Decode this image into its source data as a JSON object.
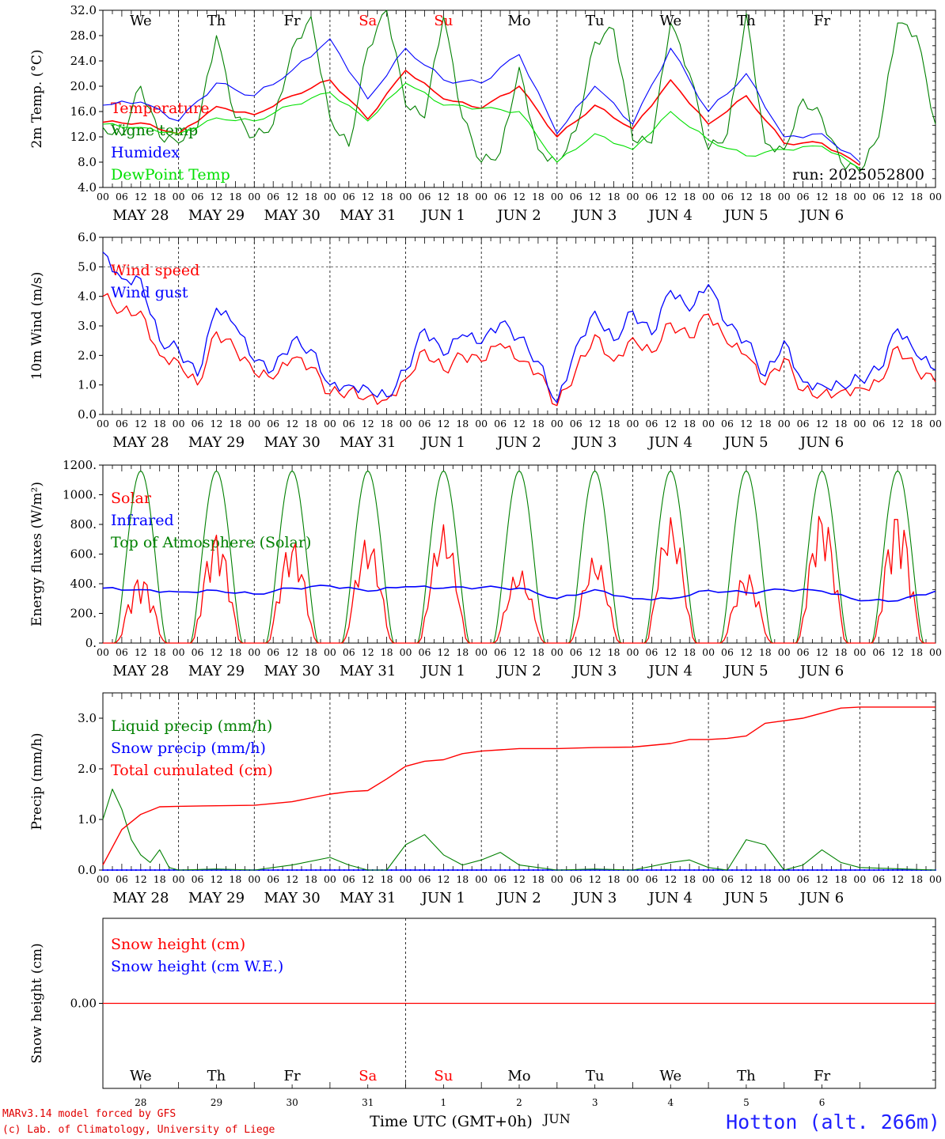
{
  "run_label": "run: 2025052800",
  "x_axis": {
    "hour_labels": [
      "00",
      "06",
      "12",
      "18"
    ],
    "date_labels": [
      "MAY 28",
      "MAY 29",
      "MAY 30",
      "MAY 31",
      "JUN  1",
      "JUN  2",
      "JUN  3",
      "JUN  4",
      "JUN  5",
      "JUN  6"
    ],
    "final_hour": "00",
    "title": "Time UTC (GMT+0h)"
  },
  "weekdays": [
    {
      "label": "We",
      "color": "#000000"
    },
    {
      "label": "Th",
      "color": "#000000"
    },
    {
      "label": "Fr",
      "color": "#000000"
    },
    {
      "label": "Sa",
      "color": "#ff0000"
    },
    {
      "label": "Su",
      "color": "#ff0000"
    },
    {
      "label": "Mo",
      "color": "#000000"
    },
    {
      "label": "Tu",
      "color": "#000000"
    },
    {
      "label": "We",
      "color": "#000000"
    },
    {
      "label": "Th",
      "color": "#000000"
    },
    {
      "label": "Fr",
      "color": "#000000"
    }
  ],
  "day_numbers": [
    "28",
    "29",
    "30",
    "31",
    "1",
    "2",
    "3",
    "4",
    "5",
    "6"
  ],
  "month_bottom": "JUN",
  "footer": {
    "line1": "MARv3.14 model forced by GFS",
    "line2": "(c) Lab. of Climatology, University of Liege",
    "station": "Hotton (alt. 266m)"
  },
  "colors": {
    "red": "#ff0000",
    "blue": "#0000ff",
    "green": "#008000",
    "light_green": "#00e000"
  },
  "chart_data": [
    {
      "id": "temp",
      "type": "line",
      "ylabel": "2m Temp. (°C)",
      "ylim": [
        4,
        32
      ],
      "yticks": [
        "4.0",
        "8.0",
        "12.0",
        "16.0",
        "20.0",
        "24.0",
        "28.0",
        "32.0"
      ],
      "ytick_values": [
        4,
        8,
        12,
        16,
        20,
        24,
        28,
        32
      ],
      "series": [
        {
          "name": "Temperature",
          "color": "#ff0000",
          "x": [
            0,
            12,
            24,
            36,
            48,
            60,
            72,
            84,
            96,
            108,
            120,
            132,
            144,
            156,
            168,
            180,
            192,
            204,
            216,
            228,
            240
          ],
          "values": [
            14.3,
            14.2,
            12.5,
            16.8,
            15.5,
            18.5,
            21.0,
            14.8,
            22.5,
            18.0,
            16.5,
            20.0,
            12.0,
            17.0,
            13.3,
            21.0,
            14.0,
            18.5,
            11.0,
            11.0,
            7.5
          ]
        },
        {
          "name": "Vigne temp",
          "color": "#008000",
          "x": [
            0,
            6,
            12,
            18,
            24,
            30,
            36,
            42,
            48,
            54,
            60,
            66,
            72,
            78,
            84,
            90,
            96,
            102,
            108,
            114,
            120,
            126,
            132,
            138,
            144,
            150,
            156,
            162,
            168,
            174,
            180,
            186,
            192,
            198,
            204,
            210,
            216,
            222,
            228,
            234,
            240,
            246,
            252,
            258,
            264
          ],
          "values": [
            13.5,
            12.2,
            20.0,
            12.0,
            11.0,
            13.5,
            28.0,
            15.0,
            12.0,
            14.0,
            26.0,
            31.0,
            15.0,
            10.5,
            26.0,
            32.0,
            17.0,
            15.0,
            31.0,
            15.0,
            8.0,
            9.5,
            23.0,
            10.0,
            8.0,
            13.0,
            27.0,
            29.0,
            11.5,
            11.0,
            30.0,
            22.0,
            10.0,
            12.5,
            31.5,
            11.0,
            10.0,
            18.0,
            15.0,
            8.0,
            6.5,
            12.0,
            30.0,
            28.0,
            14.0
          ]
        },
        {
          "name": "Humidex",
          "color": "#0000ff",
          "x": [
            0,
            12,
            24,
            36,
            48,
            60,
            72,
            84,
            96,
            108,
            120,
            132,
            144,
            156,
            168,
            180,
            192,
            204,
            216,
            228,
            240
          ],
          "values": [
            17.0,
            17.5,
            14.5,
            20.5,
            18.5,
            22.5,
            27.5,
            18.0,
            26.0,
            21.0,
            20.5,
            25.0,
            12.5,
            20.0,
            14.0,
            26.0,
            16.0,
            22.0,
            12.0,
            12.5,
            8.0
          ]
        },
        {
          "name": "DewPoint Temp",
          "color": "#00e000",
          "x": [
            0,
            12,
            24,
            36,
            48,
            60,
            72,
            84,
            96,
            108,
            120,
            132,
            144,
            156,
            168,
            180,
            192,
            204,
            216,
            228,
            240
          ],
          "values": [
            14.0,
            13.5,
            12.5,
            15.0,
            14.5,
            17.0,
            19.0,
            14.5,
            20.5,
            17.0,
            16.5,
            16.0,
            8.0,
            12.5,
            10.0,
            16.0,
            11.5,
            9.0,
            10.0,
            10.5,
            7.0
          ]
        }
      ]
    },
    {
      "id": "wind",
      "type": "line",
      "ylabel": "10m Wind (m/s)",
      "ylim": [
        0,
        6
      ],
      "yticks": [
        "0.0",
        "1.0",
        "2.0",
        "3.0",
        "4.0",
        "5.0",
        "6.0"
      ],
      "ytick_values": [
        0,
        1,
        2,
        3,
        4,
        5,
        6
      ],
      "series": [
        {
          "name": "Wind speed",
          "color": "#ff0000",
          "x": [
            0,
            6,
            12,
            18,
            24,
            30,
            36,
            42,
            48,
            54,
            60,
            66,
            72,
            78,
            84,
            90,
            96,
            102,
            108,
            114,
            120,
            126,
            132,
            138,
            144,
            150,
            156,
            162,
            168,
            174,
            180,
            186,
            192,
            198,
            204,
            210,
            216,
            222,
            228,
            234,
            240,
            246,
            252,
            258,
            264
          ],
          "values": [
            4.0,
            3.5,
            3.5,
            2.0,
            1.8,
            1.0,
            2.8,
            2.2,
            1.4,
            1.2,
            1.9,
            1.6,
            0.7,
            0.8,
            0.6,
            0.5,
            1.2,
            2.2,
            1.5,
            2.0,
            1.8,
            2.4,
            1.8,
            1.4,
            0.3,
            1.5,
            2.7,
            1.8,
            2.6,
            2.1,
            3.1,
            2.6,
            3.4,
            2.4,
            2.0,
            1.0,
            1.9,
            0.8,
            0.7,
            0.8,
            0.9,
            1.1,
            2.3,
            1.5,
            1.1
          ]
        },
        {
          "name": "Wind gust",
          "color": "#0000ff",
          "x": [
            0,
            6,
            12,
            18,
            24,
            30,
            36,
            42,
            48,
            54,
            60,
            66,
            72,
            78,
            84,
            90,
            96,
            102,
            108,
            114,
            120,
            126,
            132,
            138,
            144,
            150,
            156,
            162,
            168,
            174,
            180,
            186,
            192,
            198,
            204,
            210,
            216,
            222,
            228,
            234,
            240,
            246,
            252,
            258,
            264
          ],
          "values": [
            5.5,
            4.6,
            4.6,
            2.5,
            2.2,
            1.3,
            3.6,
            3.0,
            1.8,
            1.5,
            2.5,
            2.2,
            1.0,
            1.0,
            0.9,
            0.6,
            1.5,
            2.9,
            2.0,
            2.7,
            2.4,
            3.1,
            2.6,
            1.8,
            0.4,
            2.3,
            3.5,
            2.5,
            3.5,
            2.7,
            4.2,
            3.5,
            4.4,
            3.0,
            2.5,
            1.3,
            2.5,
            1.1,
            1.0,
            1.0,
            1.2,
            1.5,
            2.9,
            2.0,
            1.5
          ]
        }
      ]
    },
    {
      "id": "energy",
      "type": "line",
      "ylabel": "Energy fluxes (W/m²)",
      "ylim": [
        0,
        1200
      ],
      "yticks": [
        "0.",
        "200.",
        "400.",
        "600.",
        "800.",
        "1000.",
        "1200."
      ],
      "ytick_values": [
        0,
        200,
        400,
        600,
        800,
        1000,
        1200
      ],
      "series": [
        {
          "name": "Solar",
          "color": "#ff0000",
          "day_peaks": [
            460,
            750,
            700,
            720,
            800,
            500,
            590,
            850,
            480,
            900
          ]
        },
        {
          "name": "Infrared",
          "color": "#0000ff",
          "x": [
            0,
            12,
            24,
            36,
            48,
            60,
            72,
            84,
            96,
            108,
            120,
            132,
            144,
            156,
            168,
            180,
            192,
            204,
            216,
            228,
            240,
            252,
            264
          ],
          "values": [
            370,
            360,
            345,
            355,
            330,
            370,
            385,
            350,
            380,
            370,
            375,
            370,
            300,
            360,
            300,
            300,
            355,
            340,
            360,
            350,
            285,
            285,
            350
          ]
        },
        {
          "name": "Top of Atmosphere (Solar)",
          "color": "#008000",
          "day_peak": 1160
        }
      ]
    },
    {
      "id": "precip",
      "type": "line",
      "ylabel": "Precip (mm/h)",
      "ylim": [
        0,
        3.5
      ],
      "yticks": [
        "0.0",
        "1.0",
        "2.0",
        "3.0"
      ],
      "ytick_values": [
        0,
        1,
        2,
        3
      ],
      "series": [
        {
          "name": "Liquid precip (mm/h)",
          "color": "#008000",
          "x": [
            0,
            3,
            6,
            9,
            12,
            15,
            18,
            21,
            24,
            36,
            48,
            60,
            72,
            78,
            84,
            90,
            96,
            102,
            108,
            114,
            120,
            126,
            132,
            144,
            156,
            168,
            180,
            186,
            192,
            198,
            204,
            210,
            216,
            222,
            228,
            234,
            240,
            264
          ],
          "values": [
            1.0,
            1.6,
            1.2,
            0.6,
            0.3,
            0.15,
            0.4,
            0.05,
            0.0,
            0.02,
            0.0,
            0.1,
            0.25,
            0.1,
            0.0,
            0.0,
            0.5,
            0.7,
            0.3,
            0.1,
            0.2,
            0.35,
            0.1,
            0.0,
            0.02,
            0.0,
            0.15,
            0.2,
            0.05,
            0.0,
            0.6,
            0.5,
            0.0,
            0.1,
            0.4,
            0.15,
            0.05,
            0.0
          ]
        },
        {
          "name": "Snow precip (mm/h)",
          "color": "#0000ff",
          "x": [
            0,
            264
          ],
          "values": [
            0,
            0
          ]
        },
        {
          "name": "Total cumulated (cm)",
          "color": "#ff0000",
          "x": [
            0,
            6,
            12,
            18,
            24,
            36,
            48,
            60,
            72,
            78,
            84,
            90,
            96,
            102,
            108,
            114,
            120,
            132,
            144,
            156,
            168,
            180,
            186,
            192,
            198,
            204,
            210,
            216,
            222,
            228,
            234,
            240,
            264
          ],
          "values": [
            0.1,
            0.8,
            1.1,
            1.25,
            1.26,
            1.27,
            1.28,
            1.35,
            1.5,
            1.55,
            1.57,
            1.8,
            2.05,
            2.15,
            2.18,
            2.3,
            2.35,
            2.4,
            2.4,
            2.42,
            2.43,
            2.5,
            2.58,
            2.58,
            2.6,
            2.65,
            2.9,
            2.95,
            3.0,
            3.1,
            3.2,
            3.22,
            3.22
          ]
        }
      ]
    },
    {
      "id": "snow",
      "type": "line",
      "ylabel": "Snow height (cm)",
      "ylim": [
        -1,
        1
      ],
      "yticks": [
        "0.00"
      ],
      "ytick_values": [
        0
      ],
      "series": [
        {
          "name": "Snow height (cm)",
          "color": "#ff0000",
          "x": [
            0,
            264
          ],
          "values": [
            0,
            0
          ]
        },
        {
          "name": "Snow height (cm W.E.)",
          "color": "#0000ff",
          "x": [
            0,
            264
          ],
          "values": [
            0,
            0
          ]
        }
      ]
    }
  ]
}
